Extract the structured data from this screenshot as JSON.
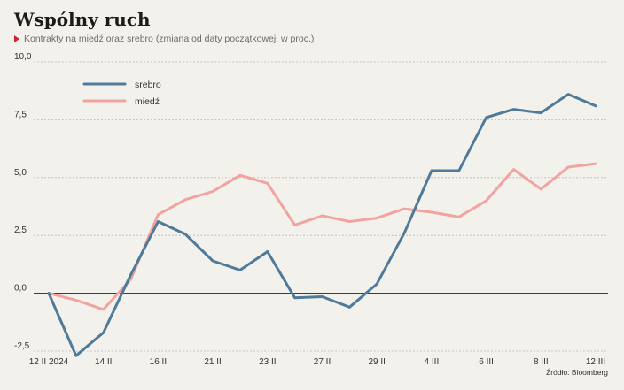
{
  "header": {
    "title": "Wspólny ruch",
    "subtitle": "Kontrakty na miedź oraz srebro (zmiana od daty początkowej, w proc.)"
  },
  "footer": {
    "source": "Źródło: Bloomberg"
  },
  "colors": {
    "srebro": "#4f7a99",
    "miedz": "#f2a3a0",
    "accent": "#d6202a"
  },
  "chart_data": {
    "type": "line",
    "title": "Wspólny ruch",
    "subtitle": "Kontrakty na miedź oraz srebro (zmiana od daty początkowej, w proc.)",
    "x": [
      "12 II 2024",
      "13 II",
      "14 II",
      "15 II",
      "16 II",
      "20 II",
      "21 II",
      "22 II",
      "23 II",
      "26 II",
      "27 II",
      "28 II",
      "29 II",
      "1 III",
      "4 III",
      "5 III",
      "6 III",
      "7 III",
      "8 III",
      "11 III",
      "12 III"
    ],
    "x_tick_labels": [
      {
        "index": 0,
        "label": "12 II 2024"
      },
      {
        "index": 2,
        "label": "14 II"
      },
      {
        "index": 4,
        "label": "16 II"
      },
      {
        "index": 6,
        "label": "21 II"
      },
      {
        "index": 8,
        "label": "23 II"
      },
      {
        "index": 10,
        "label": "27 II"
      },
      {
        "index": 12,
        "label": "29 II"
      },
      {
        "index": 14,
        "label": "4 III"
      },
      {
        "index": 16,
        "label": "6 III"
      },
      {
        "index": 18,
        "label": "8 III"
      },
      {
        "index": 20,
        "label": "12 III"
      }
    ],
    "yticks": [
      "10,0",
      "7,5",
      "5,0",
      "2,5",
      "0,0",
      "-2,5"
    ],
    "ylim": [
      -2.5,
      10.0
    ],
    "grid": true,
    "legend_position": "top-left",
    "series": [
      {
        "name": "srebro",
        "values": [
          0.0,
          -2.7,
          -1.7,
          0.8,
          3.1,
          2.55,
          1.4,
          1.0,
          1.8,
          -0.2,
          -0.15,
          -0.6,
          0.4,
          2.6,
          5.3,
          5.3,
          7.6,
          7.95,
          7.8,
          8.6,
          8.1
        ]
      },
      {
        "name": "miedź",
        "values": [
          0.0,
          -0.3,
          -0.7,
          0.6,
          3.4,
          4.05,
          4.4,
          5.1,
          4.75,
          2.95,
          3.35,
          3.1,
          3.25,
          3.65,
          3.5,
          3.3,
          4.0,
          5.35,
          4.5,
          5.45,
          5.6
        ]
      }
    ]
  }
}
